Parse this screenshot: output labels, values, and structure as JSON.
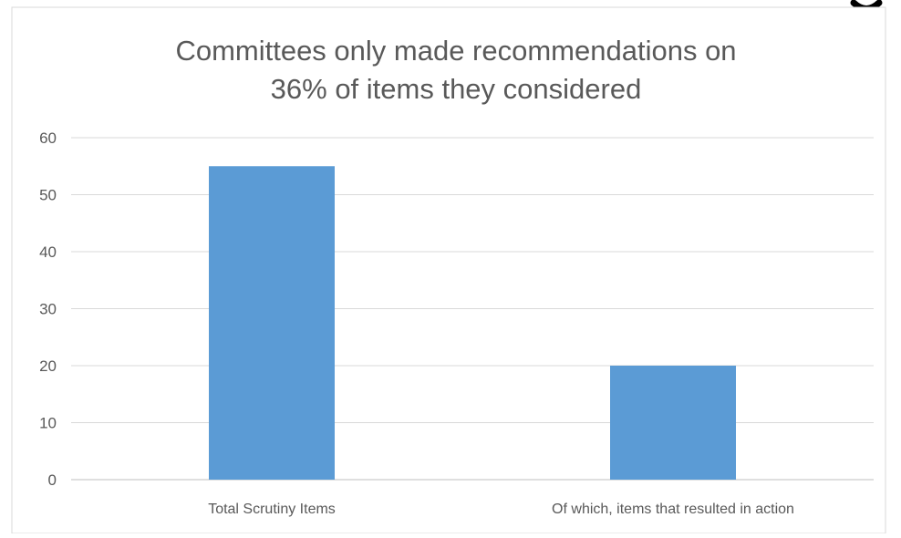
{
  "chart_data": {
    "type": "bar",
    "title_lines": [
      "Committees only made recommendations on",
      "36% of items they considered"
    ],
    "categories": [
      "Total Scrutiny Items",
      "Of which, items that resulted in action"
    ],
    "values": [
      55,
      20
    ],
    "ylim": [
      0,
      60
    ],
    "yticks": [
      0,
      10,
      20,
      30,
      40,
      50,
      60
    ],
    "grid": true,
    "legend": "none",
    "bar_color": "#5B9BD5",
    "gridline_color": "#D9D9D9",
    "text_color": "#595959"
  }
}
